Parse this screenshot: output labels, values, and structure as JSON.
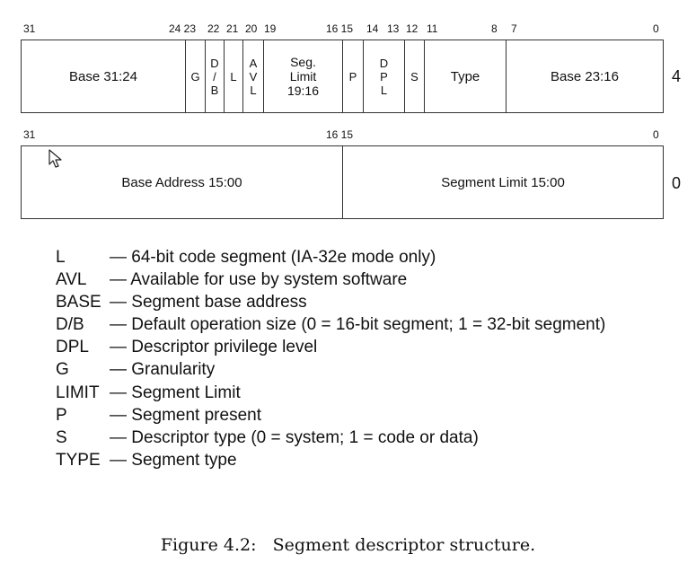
{
  "upper_word": {
    "bit_numbers": [
      "31",
      "24 23",
      "22",
      "21",
      "20",
      "19",
      "16 15",
      "14",
      "13",
      "12",
      "11",
      "8",
      "7",
      "0"
    ],
    "fields": {
      "base_hi": "Base 31:24",
      "g": "G",
      "db": [
        "D",
        "/",
        "B"
      ],
      "l": "L",
      "avl": [
        "A",
        "V",
        "L"
      ],
      "seg_limit": [
        "Seg.",
        "Limit",
        "19:16"
      ],
      "p": "P",
      "dpl": [
        "D",
        "P",
        "L"
      ],
      "s": "S",
      "type": "Type",
      "base_mid": "Base 23:16"
    },
    "offset": "4"
  },
  "lower_word": {
    "bit_numbers": [
      "31",
      "16 15",
      "0"
    ],
    "fields": {
      "base_lo": "Base Address 15:00",
      "limit_lo": "Segment Limit 15:00"
    },
    "offset": "0"
  },
  "legend": [
    {
      "abbr": "L",
      "desc": "— 64-bit code segment (IA-32e mode only)"
    },
    {
      "abbr": "AVL",
      "desc": "— Available for use by system software"
    },
    {
      "abbr": "BASE",
      "desc": "— Segment base address"
    },
    {
      "abbr": "D/B",
      "desc": "— Default operation size (0 = 16-bit segment; 1 = 32-bit segment)"
    },
    {
      "abbr": "DPL",
      "desc": "— Descriptor privilege level"
    },
    {
      "abbr": "G",
      "desc": "— Granularity"
    },
    {
      "abbr": "LIMIT",
      "desc": "— Segment Limit"
    },
    {
      "abbr": "P",
      "desc": "— Segment present"
    },
    {
      "abbr": "S",
      "desc": "— Descriptor type (0 = system; 1 = code or data)"
    },
    {
      "abbr": "TYPE",
      "desc": "— Segment type"
    }
  ],
  "caption": "Figure 4.2:   Segment descriptor structure."
}
